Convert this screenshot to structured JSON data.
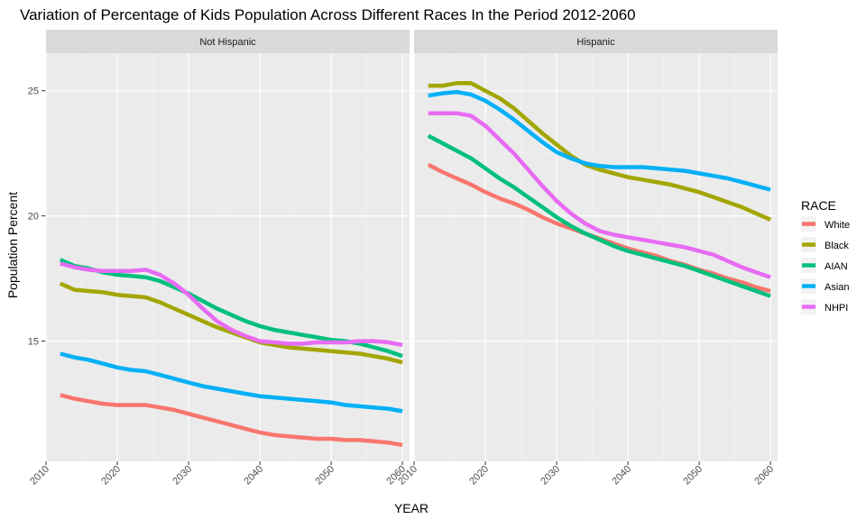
{
  "chart_data": {
    "type": "line",
    "title": "Variation of Percentage of Kids Population Across Different Races In the Period 2012-2060",
    "xlabel": "YEAR",
    "ylabel": "Population Percent",
    "xlim": [
      2010,
      2061
    ],
    "ylim": [
      10.2,
      26.5
    ],
    "xticks": [
      2010,
      2020,
      2030,
      2040,
      2050,
      2060
    ],
    "yticks": [
      15,
      20,
      25
    ],
    "grid": true,
    "legend": {
      "title": "RACE",
      "placement": "right"
    },
    "x": [
      2012,
      2014,
      2016,
      2018,
      2020,
      2022,
      2024,
      2026,
      2028,
      2030,
      2032,
      2034,
      2036,
      2038,
      2040,
      2042,
      2044,
      2046,
      2048,
      2050,
      2052,
      2054,
      2056,
      2058,
      2060
    ],
    "series_meta": [
      {
        "name": "White",
        "color": "#F8766D"
      },
      {
        "name": "Black",
        "color": "#A3A500"
      },
      {
        "name": "AIAN",
        "color": "#00BF7D"
      },
      {
        "name": "Asian",
        "color": "#00B0F6"
      },
      {
        "name": "NHPI",
        "color": "#E76BF3"
      }
    ],
    "facets": [
      {
        "label": "Not Hispanic",
        "series": [
          {
            "name": "White",
            "values": [
              12.85,
              12.7,
              12.6,
              12.5,
              12.45,
              12.45,
              12.45,
              12.35,
              12.25,
              12.1,
              11.95,
              11.8,
              11.65,
              11.5,
              11.35,
              11.25,
              11.2,
              11.15,
              11.1,
              11.1,
              11.05,
              11.05,
              11.0,
              10.95,
              10.85
            ]
          },
          {
            "name": "Black",
            "values": [
              17.3,
              17.05,
              17.0,
              16.95,
              16.85,
              16.8,
              16.75,
              16.55,
              16.3,
              16.05,
              15.8,
              15.55,
              15.35,
              15.15,
              14.95,
              14.85,
              14.75,
              14.7,
              14.65,
              14.6,
              14.55,
              14.5,
              14.4,
              14.3,
              14.15
            ]
          },
          {
            "name": "AIAN",
            "values": [
              18.25,
              18.0,
              17.9,
              17.75,
              17.65,
              17.6,
              17.55,
              17.4,
              17.15,
              16.9,
              16.6,
              16.3,
              16.05,
              15.8,
              15.6,
              15.45,
              15.35,
              15.25,
              15.15,
              15.05,
              15.0,
              14.9,
              14.75,
              14.6,
              14.4
            ]
          },
          {
            "name": "Asian",
            "values": [
              14.5,
              14.35,
              14.25,
              14.1,
              13.95,
              13.85,
              13.8,
              13.65,
              13.5,
              13.35,
              13.2,
              13.1,
              13.0,
              12.9,
              12.8,
              12.75,
              12.7,
              12.65,
              12.6,
              12.55,
              12.45,
              12.4,
              12.35,
              12.3,
              12.2
            ]
          },
          {
            "name": "NHPI",
            "values": [
              18.1,
              17.95,
              17.85,
              17.8,
              17.8,
              17.8,
              17.85,
              17.65,
              17.3,
              16.85,
              16.3,
              15.8,
              15.45,
              15.2,
              15.0,
              14.95,
              14.9,
              14.9,
              14.95,
              14.95,
              14.95,
              15.0,
              15.0,
              14.95,
              14.85
            ]
          }
        ]
      },
      {
        "label": "Hispanic",
        "series": [
          {
            "name": "White",
            "values": [
              22.05,
              21.75,
              21.5,
              21.25,
              20.95,
              20.7,
              20.5,
              20.25,
              19.95,
              19.7,
              19.5,
              19.3,
              19.1,
              18.9,
              18.7,
              18.55,
              18.4,
              18.2,
              18.05,
              17.85,
              17.7,
              17.5,
              17.35,
              17.15,
              17.0
            ]
          },
          {
            "name": "Black",
            "values": [
              25.2,
              25.2,
              25.3,
              25.3,
              25.0,
              24.7,
              24.3,
              23.8,
              23.3,
              22.85,
              22.4,
              22.05,
              21.85,
              21.7,
              21.55,
              21.45,
              21.35,
              21.25,
              21.1,
              20.95,
              20.75,
              20.55,
              20.35,
              20.1,
              19.85
            ]
          },
          {
            "name": "AIAN",
            "values": [
              23.2,
              22.9,
              22.6,
              22.3,
              21.9,
              21.5,
              21.15,
              20.75,
              20.35,
              19.95,
              19.6,
              19.3,
              19.05,
              18.8,
              18.6,
              18.45,
              18.3,
              18.15,
              18.0,
              17.8,
              17.6,
              17.4,
              17.2,
              17.0,
              16.8
            ]
          },
          {
            "name": "Asian",
            "values": [
              24.8,
              24.9,
              24.95,
              24.85,
              24.6,
              24.25,
              23.85,
              23.4,
              22.95,
              22.55,
              22.3,
              22.1,
              22.0,
              21.95,
              21.95,
              21.95,
              21.9,
              21.85,
              21.8,
              21.7,
              21.6,
              21.5,
              21.35,
              21.2,
              21.05
            ]
          },
          {
            "name": "NHPI",
            "values": [
              24.1,
              24.1,
              24.1,
              24.0,
              23.6,
              23.05,
              22.5,
              21.85,
              21.2,
              20.6,
              20.1,
              19.7,
              19.4,
              19.25,
              19.15,
              19.05,
              18.95,
              18.85,
              18.75,
              18.6,
              18.45,
              18.2,
              17.95,
              17.75,
              17.55
            ]
          }
        ]
      }
    ]
  }
}
